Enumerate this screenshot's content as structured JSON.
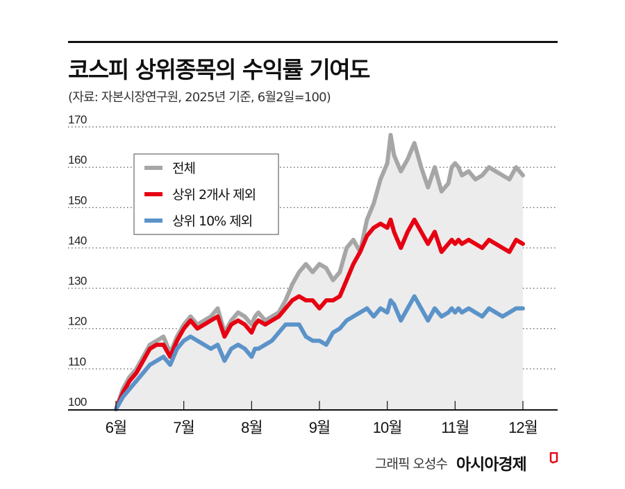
{
  "header": {
    "title": "코스피 상위종목의 수익률 기여도",
    "subtitle": "(자료: 자본시장연구원, 2025년 기준, 6월2일=100)"
  },
  "footer": {
    "credit": "그래픽 오성수",
    "brand": "아시아경제"
  },
  "colors": {
    "total": "#a6a6a6",
    "excl_top2": "#e60012",
    "excl_top10pct": "#5b93c9",
    "area_fill": "#ececec"
  },
  "chart_data": {
    "type": "line",
    "title": "코스피 상위종목의 수익률 기여도",
    "xlabel": "",
    "ylabel": "",
    "ylim": [
      100,
      170
    ],
    "yticks": [
      "100",
      "110",
      "120",
      "130",
      "140",
      "150",
      "160",
      "170"
    ],
    "xticks": [
      "6월",
      "7월",
      "8월",
      "9월",
      "10월",
      "11월",
      "12월"
    ],
    "xlim": [
      0,
      6
    ],
    "grid": "horizontal dotted",
    "legend_position": "top-left",
    "series": [
      {
        "name": "전체",
        "color": "#a6a6a6",
        "x": [
          0,
          0.1,
          0.2,
          0.3,
          0.4,
          0.5,
          0.6,
          0.7,
          0.8,
          0.9,
          1.0,
          1.1,
          1.2,
          1.3,
          1.4,
          1.5,
          1.6,
          1.7,
          1.8,
          1.9,
          2.0,
          2.05,
          2.1,
          2.2,
          2.3,
          2.4,
          2.5,
          2.6,
          2.7,
          2.8,
          2.9,
          3.0,
          3.1,
          3.2,
          3.3,
          3.4,
          3.5,
          3.6,
          3.7,
          3.8,
          3.9,
          4.0,
          4.05,
          4.1,
          4.2,
          4.3,
          4.4,
          4.5,
          4.6,
          4.7,
          4.8,
          4.9,
          4.95,
          5.0,
          5.05,
          5.1,
          5.2,
          5.3,
          5.4,
          5.5,
          5.6,
          5.7,
          5.8,
          5.9,
          6.0
        ],
        "values": [
          100,
          105,
          108,
          110,
          113,
          116,
          117,
          118,
          114,
          118,
          121,
          123,
          121,
          122,
          123,
          125,
          119,
          122,
          124,
          123,
          121,
          123,
          124,
          122,
          123,
          124,
          127,
          131,
          134,
          136,
          134,
          136,
          135,
          132,
          134,
          140,
          142,
          139,
          147,
          151,
          157,
          161,
          168,
          163,
          159,
          162,
          166,
          160,
          155,
          160,
          154,
          156,
          160,
          161,
          160,
          158,
          159,
          157,
          158,
          160,
          159,
          158,
          157,
          160,
          158
        ]
      },
      {
        "name": "상위 2개사 제외",
        "color": "#e60012",
        "x": [
          0,
          0.1,
          0.2,
          0.3,
          0.4,
          0.5,
          0.6,
          0.7,
          0.8,
          0.9,
          1.0,
          1.1,
          1.2,
          1.3,
          1.4,
          1.5,
          1.6,
          1.7,
          1.8,
          1.9,
          2.0,
          2.05,
          2.1,
          2.2,
          2.3,
          2.4,
          2.5,
          2.6,
          2.7,
          2.8,
          2.9,
          3.0,
          3.1,
          3.2,
          3.3,
          3.4,
          3.5,
          3.6,
          3.7,
          3.8,
          3.9,
          4.0,
          4.05,
          4.1,
          4.2,
          4.3,
          4.4,
          4.5,
          4.6,
          4.7,
          4.8,
          4.9,
          4.95,
          5.0,
          5.05,
          5.1,
          5.2,
          5.3,
          5.4,
          5.5,
          5.6,
          5.7,
          5.8,
          5.9,
          6.0
        ],
        "values": [
          100,
          104,
          107,
          109,
          112,
          115,
          116,
          116,
          113,
          117,
          120,
          122,
          120,
          121,
          122,
          123,
          118,
          121,
          122,
          121,
          119,
          121,
          122,
          121,
          122,
          123,
          125,
          127,
          128,
          127,
          127,
          125,
          127,
          127,
          128,
          132,
          136,
          139,
          143,
          145,
          146,
          145,
          147,
          144,
          140,
          144,
          147,
          144,
          141,
          144,
          139,
          141,
          142,
          141,
          142,
          141,
          142,
          141,
          140,
          142,
          141,
          140,
          139,
          142,
          141
        ]
      },
      {
        "name": "상위 10% 제외",
        "color": "#5b93c9",
        "x": [
          0,
          0.1,
          0.2,
          0.3,
          0.4,
          0.5,
          0.6,
          0.7,
          0.8,
          0.9,
          1.0,
          1.1,
          1.2,
          1.3,
          1.4,
          1.5,
          1.6,
          1.7,
          1.8,
          1.9,
          2.0,
          2.05,
          2.1,
          2.2,
          2.3,
          2.4,
          2.5,
          2.6,
          2.7,
          2.8,
          2.9,
          3.0,
          3.1,
          3.2,
          3.3,
          3.4,
          3.5,
          3.6,
          3.7,
          3.8,
          3.9,
          4.0,
          4.05,
          4.1,
          4.2,
          4.3,
          4.4,
          4.5,
          4.6,
          4.7,
          4.8,
          4.9,
          4.95,
          5.0,
          5.05,
          5.1,
          5.2,
          5.3,
          5.4,
          5.5,
          5.6,
          5.7,
          5.8,
          5.9,
          6.0
        ],
        "values": [
          100,
          103,
          105,
          107,
          109,
          111,
          112,
          113,
          111,
          115,
          117,
          118,
          117,
          116,
          115,
          116,
          112,
          115,
          116,
          115,
          113,
          115,
          115,
          116,
          117,
          119,
          121,
          121,
          121,
          118,
          117,
          117,
          116,
          119,
          120,
          122,
          123,
          124,
          125,
          123,
          125,
          124,
          127,
          126,
          122,
          125,
          128,
          125,
          122,
          125,
          123,
          124,
          125,
          124,
          125,
          124,
          125,
          124,
          123,
          125,
          124,
          123,
          124,
          125,
          125
        ]
      }
    ]
  }
}
